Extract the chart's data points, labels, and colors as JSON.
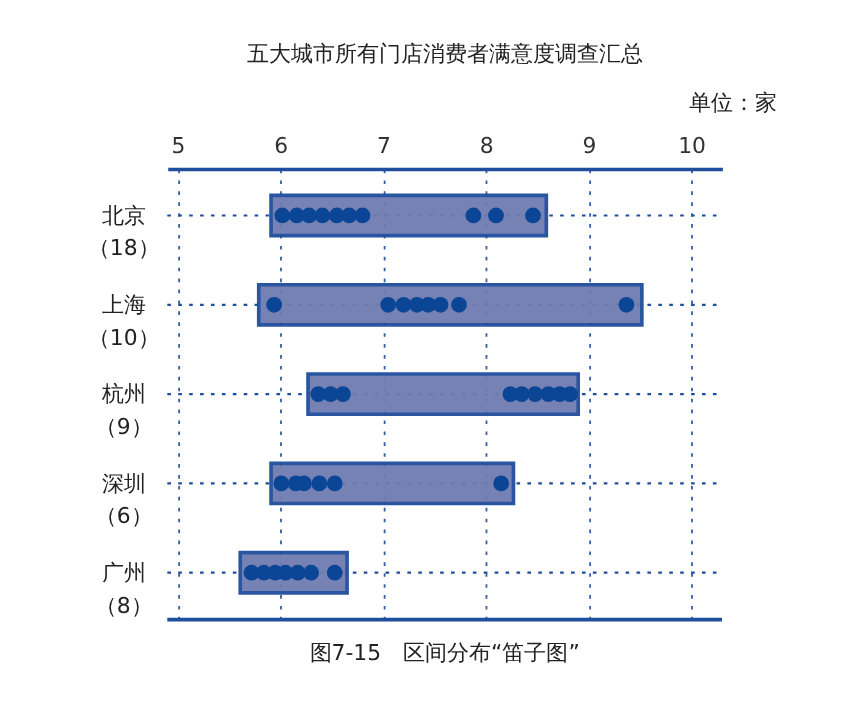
{
  "chart_data": {
    "type": "bar",
    "orientation": "horizontal",
    "title": "五大城市所有门店消费者满意度调查汇总",
    "categories": [
      "北京（18）",
      "上海（10）",
      "杭州（9）",
      "深圳（6）",
      "广州（8）"
    ],
    "xlim": [
      4.9,
      10.3
    ],
    "xticks": [
      5,
      6,
      7,
      8,
      9,
      10
    ],
    "grid": "x",
    "marker": "circle",
    "ref_lines": [
      {
        "axis": "y",
        "value": "北京（18）",
        "color": "#1f4e9c",
        "line_style": "dotted"
      },
      {
        "axis": "y",
        "value": "上海（10）",
        "color": "#1f4e9c",
        "line_style": "dotted"
      },
      {
        "axis": "y",
        "value": "杭州（9）",
        "color": "#1f4e9c",
        "line_style": "dotted"
      },
      {
        "axis": "y",
        "value": "深圳（6）",
        "color": "#1f4e9c",
        "line_style": "dotted"
      },
      {
        "axis": "y",
        "value": "广州（8）",
        "color": "#1f4e9c",
        "line_style": "dotted"
      }
    ],
    "series": [
      {
        "type": "bar",
        "color": "#6f7bb0",
        "base": [
          5.91,
          5.79,
          6.27,
          5.91,
          5.61
        ],
        "values": [
          2.68,
          3.73,
          2.63,
          2.36,
          1.04
        ]
      },
      {
        "type": "scatter",
        "color": "#0b4596",
        "x": [
          "北京（18）",
          "北京（18）",
          "北京（18）",
          "北京（18）",
          "北京（18）",
          "北京（18）",
          "北京（18）",
          "北京（18）",
          "北京（18）",
          "北京（18）",
          "上海（10）",
          "上海（10）",
          "上海（10）",
          "上海（10）",
          "上海（10）",
          "上海（10）",
          "上海（10）",
          "上海（10）",
          "杭州（9）",
          "杭州（9）",
          "杭州（9）",
          "杭州（9）",
          "杭州（9）",
          "杭州（9）",
          "杭州（9）",
          "杭州（9）",
          "杭州（9）",
          "深圳（6）",
          "深圳（6）",
          "深圳（6）",
          "深圳（6）",
          "深圳（6）",
          "深圳（6）",
          "广州（8）",
          "广州（8）",
          "广州（8）",
          "广州（8）",
          "广州（8）",
          "广州（8）",
          "广州（8）"
        ],
        "values": [
          6.02,
          6.16,
          6.28,
          6.41,
          6.55,
          6.67,
          6.8,
          7.88,
          8.1,
          8.46,
          5.94,
          7.05,
          7.2,
          7.33,
          7.44,
          7.56,
          7.74,
          9.37,
          6.37,
          6.49,
          6.61,
          8.24,
          8.35,
          8.48,
          8.61,
          8.72,
          8.82,
          6.01,
          6.15,
          6.23,
          6.38,
          6.53,
          8.15,
          5.72,
          5.84,
          5.95,
          6.05,
          6.17,
          6.3,
          6.53
        ]
      }
    ],
    "annotations": [
      "单位：家",
      "图7-15　区间分布“笛子图”"
    ]
  }
}
